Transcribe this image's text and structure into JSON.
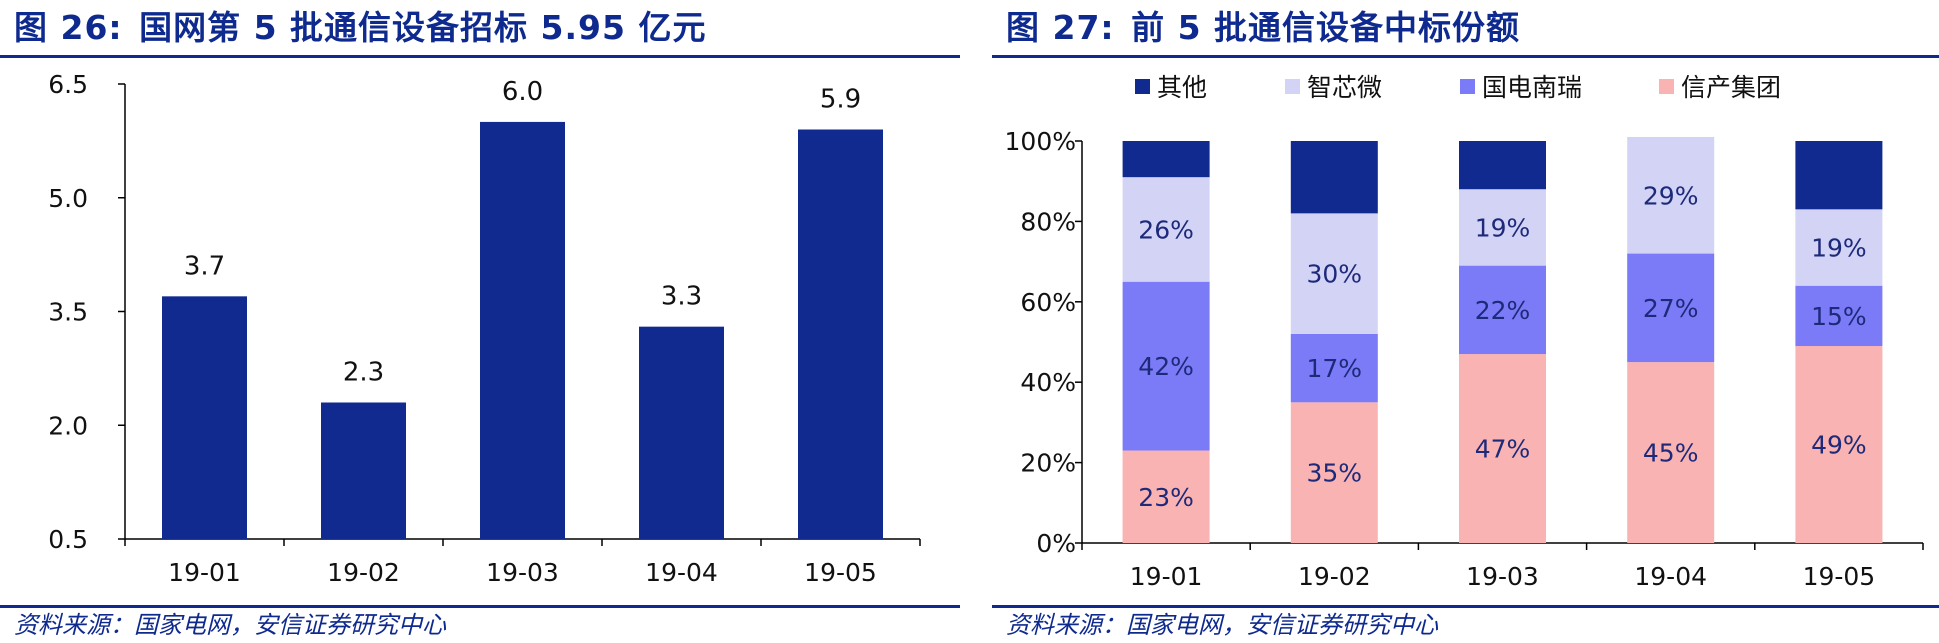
{
  "left": {
    "fig_label": "图 26:",
    "fig_title": "国网第 5 批通信设备招标 5.95 亿元",
    "source": "资料来源：国家电网，安信证券研究中心"
  },
  "right": {
    "fig_label": "图 27:",
    "fig_title": "前 5 批通信设备中标份额",
    "source": "资料来源：国家电网，安信证券研究中心"
  },
  "colors": {
    "title": "#0f2a8f",
    "bar": "#112a8f",
    "series": [
      "#112a8f",
      "#d3d3f5",
      "#7b7bf7",
      "#f9b3b3"
    ]
  },
  "chart_data": [
    {
      "type": "bar",
      "title": "国网第 5 批通信设备招标 5.95 亿元",
      "categories": [
        "19-01",
        "19-02",
        "19-03",
        "19-04",
        "19-05"
      ],
      "values": [
        3.7,
        2.3,
        6.0,
        3.3,
        5.9
      ],
      "value_labels": [
        "3.7",
        "2.3",
        "6.0",
        "3.3",
        "5.9"
      ],
      "yticks": [
        0.5,
        2.0,
        3.5,
        5.0,
        6.5
      ],
      "ytick_labels": [
        "0.5",
        "2.0",
        "3.5",
        "5.0",
        "6.5"
      ],
      "ylim": [
        0.5,
        6.5
      ],
      "xlabel": "",
      "ylabel": ""
    },
    {
      "type": "bar",
      "stacked": true,
      "percent": true,
      "title": "前 5 批通信设备中标份额",
      "categories": [
        "19-01",
        "19-02",
        "19-03",
        "19-04",
        "19-05"
      ],
      "series": [
        {
          "name": "信产集团",
          "values": [
            23,
            35,
            47,
            45,
            49
          ],
          "labels": [
            "23%",
            "35%",
            "47%",
            "45%",
            "49%"
          ]
        },
        {
          "name": "国电南瑞",
          "values": [
            42,
            17,
            22,
            27,
            15
          ],
          "labels": [
            "42%",
            "17%",
            "22%",
            "27%",
            "15%"
          ]
        },
        {
          "name": "智芯微",
          "values": [
            26,
            30,
            19,
            29,
            19
          ],
          "labels": [
            "26%",
            "30%",
            "19%",
            "29%",
            "19%"
          ]
        },
        {
          "name": "其他",
          "values": [
            9,
            18,
            12,
            0,
            17
          ],
          "labels": [
            "",
            "",
            "",
            "",
            ""
          ]
        }
      ],
      "legend": [
        "其他",
        "智芯微",
        "国电南瑞",
        "信产集团"
      ],
      "yticks": [
        0,
        20,
        40,
        60,
        80,
        100
      ],
      "ytick_labels": [
        "0%",
        "20%",
        "40%",
        "60%",
        "80%",
        "100%"
      ],
      "ylim": [
        0,
        100
      ],
      "legend_position": "top"
    }
  ]
}
